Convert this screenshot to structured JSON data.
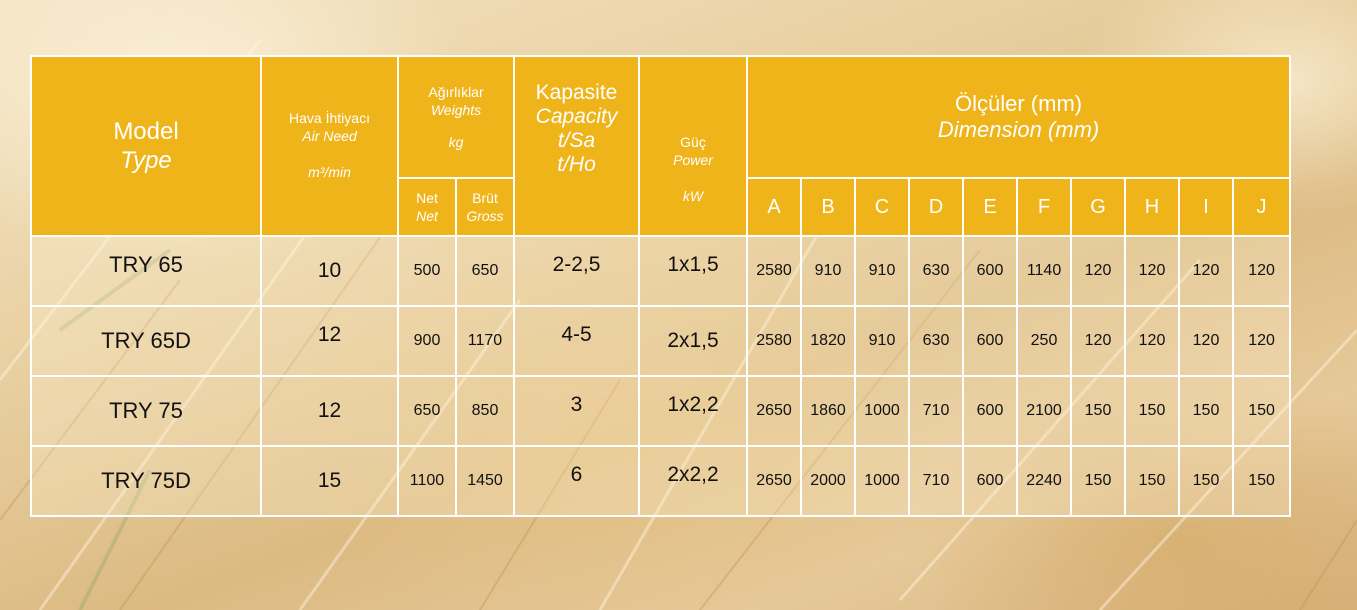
{
  "header": {
    "model": {
      "tr": "Model",
      "en": "Type"
    },
    "air_need": {
      "tr": "Hava İhtiyacı",
      "en": "Air Need",
      "unit": "m³/min"
    },
    "weights": {
      "tr": "Ağırlıklar",
      "en": "Weights",
      "unit": "kg",
      "net_tr": "Net",
      "net_en": "Net",
      "gross_tr": "Brüt",
      "gross_en": "Gross"
    },
    "capacity": {
      "tr": "Kapasite",
      "en": "Capacity",
      "unit1": "t/Sa",
      "unit2": "t/Ho"
    },
    "power": {
      "tr": "Güç",
      "en": "Power",
      "unit": "kW"
    },
    "dimensions": {
      "tr": "Ölçüler (mm)",
      "en": "Dimension (mm)"
    },
    "dimension_letters": [
      "A",
      "B",
      "C",
      "D",
      "E",
      "F",
      "G",
      "H",
      "I",
      "J"
    ]
  },
  "rows": [
    {
      "model": "TRY 65",
      "air": "10",
      "net": "500",
      "gross": "650",
      "capacity": "2-2,5",
      "power": "1x1,5",
      "dims": [
        "2580",
        "910",
        "910",
        "630",
        "600",
        "1140",
        "120",
        "120",
        "120",
        "120"
      ]
    },
    {
      "model": "TRY 65D",
      "air": "12",
      "net": "900",
      "gross": "1170",
      "capacity": "4-5",
      "power": "2x1,5",
      "dims": [
        "2580",
        "1820",
        "910",
        "630",
        "600",
        "250",
        "120",
        "120",
        "120",
        "120"
      ]
    },
    {
      "model": "TRY 75",
      "air": "12",
      "net": "650",
      "gross": "850",
      "capacity": "3",
      "power": "1x2,2",
      "dims": [
        "2650",
        "1860",
        "1000",
        "710",
        "600",
        "2100",
        "150",
        "150",
        "150",
        "150"
      ]
    },
    {
      "model": "TRY 75D",
      "air": "15",
      "net": "1100",
      "gross": "1450",
      "capacity": "6",
      "power": "2x2,2",
      "dims": [
        "2650",
        "2000",
        "1000",
        "710",
        "600",
        "2240",
        "150",
        "150",
        "150",
        "150"
      ]
    }
  ],
  "colors": {
    "header_bg": "#efb41a",
    "header_text": "#ffffff",
    "grid": "#efb41a",
    "body_text": "#111111"
  }
}
